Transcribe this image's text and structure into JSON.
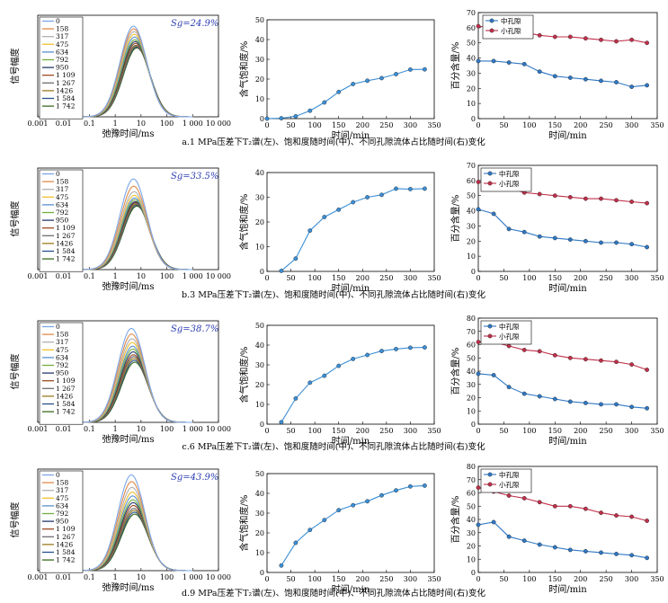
{
  "colors": {
    "t2_series": [
      "#7aa6e8",
      "#e08a4a",
      "#b0b0b0",
      "#f0c030",
      "#5b8fd0",
      "#70b040",
      "#24386b",
      "#9a4a20",
      "#6e6e6e",
      "#9a7a20",
      "#26508a",
      "#3a6a20",
      "#e0b0c0"
    ],
    "saturation": "#3b8fd6",
    "medium_pore": "#2f78c4",
    "small_pore": "#c0304a"
  },
  "chart_data": [
    {
      "id": "a-t2",
      "type": "line",
      "panel_row": 0,
      "panel_col": 0,
      "sg_label": "Sg=24.9%",
      "xlabel": "弛豫时间/ms",
      "ylabel": "信号幅度",
      "xscale": "log",
      "xlim": [
        0.001,
        10000
      ],
      "xticks": [
        0.001,
        0.01,
        0.1,
        1,
        10,
        100,
        1000,
        10000
      ],
      "xtick_labels": [
        "0.001",
        "0.01",
        "0.1",
        "1",
        "10",
        "100",
        "1 000",
        "10 000"
      ],
      "legend": [
        "0",
        "158",
        "317",
        "475",
        "634",
        "792",
        "950",
        "1 109",
        "1 267",
        "1426",
        "1 584",
        "1 742"
      ],
      "peak_x": 6,
      "peak_heights": [
        1.0,
        0.97,
        0.94,
        0.91,
        0.88,
        0.85,
        0.83,
        0.81,
        0.79,
        0.78,
        0.77,
        0.76
      ],
      "ymax": 1.12
    },
    {
      "id": "a-sat",
      "type": "line",
      "panel_row": 0,
      "panel_col": 1,
      "xlabel": "时间/min",
      "ylabel": "含气饱和度/%",
      "xlim": [
        0,
        350
      ],
      "ylim": [
        0,
        50
      ],
      "xticks": [
        0,
        50,
        100,
        150,
        200,
        250,
        300,
        350
      ],
      "yticks": [
        0,
        10,
        20,
        30,
        40,
        50
      ],
      "series": [
        {
          "x": [
            0,
            30,
            60,
            90,
            120,
            150,
            180,
            210,
            240,
            270,
            300,
            330
          ],
          "values": [
            0,
            0.2,
            1.2,
            4.0,
            8.2,
            13.5,
            17.5,
            19.2,
            20.5,
            22.5,
            24.8,
            24.9
          ]
        }
      ]
    },
    {
      "id": "a-pore",
      "type": "line",
      "panel_row": 0,
      "panel_col": 2,
      "xlabel": "时间/min",
      "ylabel": "百分含量/%",
      "xlim": [
        0,
        350
      ],
      "ylim": [
        0,
        70
      ],
      "xticks": [
        0,
        50,
        100,
        150,
        200,
        250,
        300,
        350
      ],
      "yticks": [
        0,
        10,
        20,
        30,
        40,
        50,
        60,
        70
      ],
      "legend_position": "top-left",
      "series": [
        {
          "name": "中孔隙",
          "x": [
            0,
            30,
            60,
            90,
            120,
            150,
            180,
            210,
            240,
            270,
            300,
            330
          ],
          "values": [
            38,
            38,
            37,
            36,
            31,
            28,
            27,
            26,
            25,
            24,
            21,
            22
          ]
        },
        {
          "name": "小孔隙",
          "x": [
            0,
            30,
            60,
            90,
            120,
            150,
            180,
            210,
            240,
            270,
            300,
            330
          ],
          "values": [
            61,
            60,
            59,
            57,
            55,
            54,
            54,
            53,
            52,
            51,
            52,
            50
          ]
        }
      ]
    },
    {
      "id": "b-t2",
      "type": "line",
      "panel_row": 1,
      "panel_col": 0,
      "sg_label": "Sg=33.5%",
      "xlabel": "弛豫时间/ms",
      "ylabel": "信号幅度",
      "xscale": "log",
      "xlim": [
        0.001,
        10000
      ],
      "xticks": [
        0.001,
        0.01,
        0.1,
        1,
        10,
        100,
        1000,
        10000
      ],
      "xtick_labels": [
        "0.001",
        "0.01",
        "0.1",
        "1",
        "10",
        "100",
        "1 000",
        "10 000"
      ],
      "legend": [
        "0",
        "158",
        "317",
        "475",
        "634",
        "792",
        "950",
        "1 109",
        "1 267",
        "1426",
        "1 584",
        "1 742"
      ],
      "peak_x": 6,
      "peak_heights": [
        1.0,
        0.92,
        0.86,
        0.82,
        0.79,
        0.77,
        0.75,
        0.74,
        0.73,
        0.72,
        0.71,
        0.7
      ],
      "ymax": 1.12
    },
    {
      "id": "b-sat",
      "type": "line",
      "panel_row": 1,
      "panel_col": 1,
      "xlabel": "时间/min",
      "ylabel": "含气饱和度/%",
      "xlim": [
        0,
        350
      ],
      "ylim": [
        0,
        40
      ],
      "xticks": [
        0,
        50,
        100,
        150,
        200,
        250,
        300,
        350
      ],
      "yticks": [
        0,
        10,
        20,
        30,
        40
      ],
      "series": [
        {
          "x": [
            30,
            60,
            90,
            120,
            150,
            180,
            210,
            240,
            270,
            300,
            330
          ],
          "values": [
            0.2,
            5.2,
            16.5,
            22.0,
            25.0,
            28.0,
            30.0,
            31.0,
            33.5,
            33.3,
            33.5
          ]
        }
      ]
    },
    {
      "id": "b-pore",
      "type": "line",
      "panel_row": 1,
      "panel_col": 2,
      "xlabel": "时间/min",
      "ylabel": "百分含量/%",
      "xlim": [
        0,
        350
      ],
      "ylim": [
        0,
        70
      ],
      "xticks": [
        0,
        50,
        100,
        150,
        200,
        250,
        300,
        350
      ],
      "yticks": [
        0,
        10,
        20,
        30,
        40,
        50,
        60,
        70
      ],
      "legend_position": "top-right",
      "series": [
        {
          "name": "中孔隙",
          "x": [
            0,
            30,
            60,
            90,
            120,
            150,
            180,
            210,
            240,
            270,
            300,
            330
          ],
          "values": [
            41,
            38,
            28,
            26,
            23,
            22,
            21,
            20,
            19,
            19,
            18,
            16
          ]
        },
        {
          "name": "小孔隙",
          "x": [
            0,
            30,
            60,
            90,
            120,
            150,
            180,
            210,
            240,
            270,
            300,
            330
          ],
          "values": [
            59,
            57,
            55,
            52,
            51,
            50,
            49,
            48,
            48,
            47,
            46,
            45
          ]
        }
      ]
    },
    {
      "id": "c-t2",
      "type": "line",
      "panel_row": 2,
      "panel_col": 0,
      "sg_label": "Sg=38.7%",
      "xlabel": "弛豫时间/ms",
      "ylabel": "信号幅度",
      "xscale": "log",
      "xlim": [
        0.001,
        10000
      ],
      "xticks": [
        0.001,
        0.01,
        0.1,
        1,
        10,
        100,
        1000,
        10000
      ],
      "xtick_labels": [
        "0.001",
        "0.01",
        "0.1",
        "1",
        "10",
        "100",
        "1 000",
        "10 000"
      ],
      "legend": [
        "0",
        "158",
        "317",
        "475",
        "634",
        "792",
        "950",
        "1 109",
        "1 267",
        "1426",
        "1 584",
        "1 742"
      ],
      "peak_x": 5,
      "peak_heights": [
        1.0,
        0.94,
        0.89,
        0.85,
        0.81,
        0.78,
        0.75,
        0.72,
        0.7,
        0.68,
        0.66,
        0.64
      ],
      "ymax": 1.08
    },
    {
      "id": "c-sat",
      "type": "line",
      "panel_row": 2,
      "panel_col": 1,
      "xlabel": "时间/min",
      "ylabel": "含气饱和度/%",
      "xlim": [
        0,
        350
      ],
      "ylim": [
        0,
        50
      ],
      "xticks": [
        0,
        50,
        100,
        150,
        200,
        250,
        300,
        350
      ],
      "yticks": [
        0,
        10,
        20,
        30,
        40,
        50
      ],
      "series": [
        {
          "x": [
            30,
            60,
            90,
            120,
            150,
            180,
            210,
            240,
            270,
            300,
            330
          ],
          "values": [
            1.0,
            13.0,
            21.0,
            24.5,
            29.5,
            33.0,
            35.0,
            37.0,
            38.0,
            38.7,
            38.8
          ]
        }
      ]
    },
    {
      "id": "c-pore",
      "type": "line",
      "panel_row": 2,
      "panel_col": 2,
      "xlabel": "时间/min",
      "ylabel": "百分含量/%",
      "xlim": [
        0,
        350
      ],
      "ylim": [
        0,
        80
      ],
      "xticks": [
        0,
        50,
        100,
        150,
        200,
        250,
        300,
        350
      ],
      "yticks": [
        0,
        10,
        20,
        30,
        40,
        50,
        60,
        70,
        80
      ],
      "legend_position": "top-right",
      "series": [
        {
          "name": "中孔隙",
          "x": [
            0,
            30,
            60,
            90,
            120,
            150,
            180,
            210,
            240,
            270,
            300,
            330
          ],
          "values": [
            38,
            37,
            28,
            23,
            21,
            19,
            17,
            16,
            15,
            15,
            13,
            12
          ]
        },
        {
          "name": "小孔隙",
          "x": [
            0,
            30,
            60,
            90,
            120,
            150,
            180,
            210,
            240,
            270,
            300,
            330
          ],
          "values": [
            62,
            62,
            59,
            56,
            55,
            52,
            50,
            49,
            48,
            47,
            45,
            41
          ]
        }
      ]
    },
    {
      "id": "d-t2",
      "type": "line",
      "panel_row": 3,
      "panel_col": 0,
      "sg_label": "Sg=43.9%",
      "xlabel": "弛豫时间/ms",
      "ylabel": "信号幅度",
      "xscale": "log",
      "xlim": [
        0.001,
        10000
      ],
      "xticks": [
        0.001,
        0.01,
        0.1,
        1,
        10,
        100,
        1000,
        10000
      ],
      "xtick_labels": [
        "0.001",
        "0.01",
        "0.1",
        "1",
        "10",
        "100",
        "1 000",
        "10 000"
      ],
      "legend": [
        "0",
        "158",
        "317",
        "475",
        "634",
        "792",
        "950",
        "1 109",
        "1 267",
        "1426",
        "1 584",
        "1 742"
      ],
      "peak_x": 5,
      "peak_heights": [
        1.0,
        0.93,
        0.87,
        0.82,
        0.78,
        0.74,
        0.71,
        0.68,
        0.65,
        0.63,
        0.61,
        0.59
      ],
      "ymax": 1.06
    },
    {
      "id": "d-sat",
      "type": "line",
      "panel_row": 3,
      "panel_col": 1,
      "xlabel": "时间/min",
      "ylabel": "含气饱和度/%",
      "xlim": [
        0,
        350
      ],
      "ylim": [
        0,
        50
      ],
      "xticks": [
        0,
        50,
        100,
        150,
        200,
        250,
        300,
        350
      ],
      "yticks": [
        0,
        10,
        20,
        30,
        40,
        50
      ],
      "series": [
        {
          "x": [
            30,
            60,
            90,
            120,
            150,
            180,
            210,
            240,
            270,
            300,
            330
          ],
          "values": [
            3.5,
            15.0,
            21.5,
            26.5,
            31.5,
            34.0,
            36.0,
            39.0,
            41.5,
            43.5,
            43.9
          ]
        }
      ]
    },
    {
      "id": "d-pore",
      "type": "line",
      "panel_row": 3,
      "panel_col": 2,
      "xlabel": "时间/min",
      "ylabel": "百分含量/%",
      "xlim": [
        0,
        350
      ],
      "ylim": [
        0,
        80
      ],
      "xticks": [
        0,
        50,
        100,
        150,
        200,
        250,
        300,
        350
      ],
      "yticks": [
        0,
        10,
        20,
        30,
        40,
        50,
        60,
        70,
        80
      ],
      "legend_position": "top-right",
      "series": [
        {
          "name": "中孔隙",
          "x": [
            0,
            30,
            60,
            90,
            120,
            150,
            180,
            210,
            240,
            270,
            300,
            330
          ],
          "values": [
            36,
            38,
            27,
            24,
            21,
            19,
            17,
            16,
            15,
            14,
            13,
            11
          ]
        },
        {
          "name": "小孔隙",
          "x": [
            0,
            30,
            60,
            90,
            120,
            150,
            180,
            210,
            240,
            270,
            300,
            330
          ],
          "values": [
            64,
            61,
            58,
            56,
            53,
            50,
            50,
            48,
            45,
            43,
            42,
            39
          ]
        }
      ]
    }
  ],
  "captions": [
    "a.1 MPa压差下T₂谱(左)、饱和度随时间(中)、不同孔隙流体占比随时间(右)变化",
    "b.3 MPa压差下T₂谱(左)、饱和度随时间(中)、不同孔隙流体占比随时间(右)变化",
    "c.6 MPa压差下T₂谱(左)、饱和度随时间(中)、不同孔隙流体占比随时间(右)变化",
    "d.9 MPa压差下T₂谱(左)、饱和度随时间(中)、不同孔隙流体占比随时间(右)变化"
  ]
}
